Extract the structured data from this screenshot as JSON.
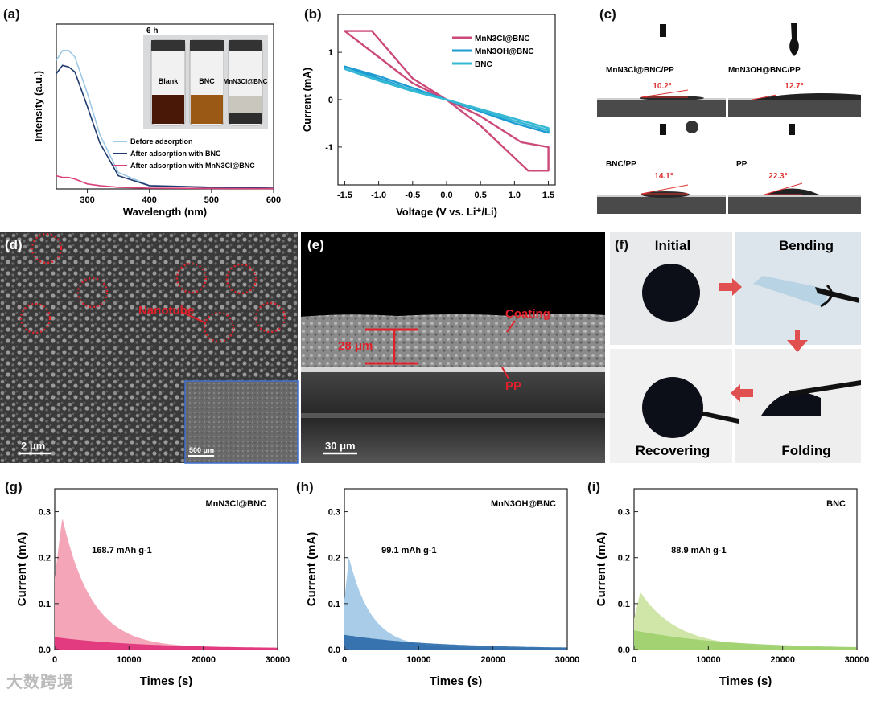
{
  "panels": {
    "a": {
      "label": "(a)",
      "xlabel": "Wavelength (nm)",
      "ylabel": "Intensity (a.u.)",
      "xticks": [
        "300",
        "400",
        "500",
        "600"
      ],
      "photo_label": "6 h",
      "vials": [
        "Blank",
        "BNC",
        "MnN3Cl@BNC"
      ],
      "legend": [
        "Before adsorption",
        "After adsorption with BNC",
        "After adsorption with MnN3Cl@BNC"
      ]
    },
    "b": {
      "label": "(b)",
      "xlabel": "Voltage (V vs. Li⁺/Li)",
      "ylabel": "Current (mA)",
      "xticks": [
        "-1.5",
        "-1.0",
        "-0.5",
        "0.0",
        "0.5",
        "1.0",
        "1.5"
      ],
      "yticks": [
        "1",
        "0",
        "-1"
      ],
      "legend": [
        "MnN3Cl@BNC",
        "MnN3OH@BNC",
        "BNC"
      ]
    },
    "c": {
      "label": "(c)",
      "items": [
        {
          "name": "MnN3Cl@BNC/PP",
          "angle": "10.2°"
        },
        {
          "name": "MnN3OH@BNC/PP",
          "angle": "12.7°"
        },
        {
          "name": "BNC/PP",
          "angle": "14.1°"
        },
        {
          "name": "PP",
          "angle": "22.3°"
        }
      ]
    },
    "d": {
      "label": "(d)",
      "annotation": "Nanotube",
      "scale": "2 μm",
      "inset_scale": "500 μm"
    },
    "e": {
      "label": "(e)",
      "thickness": "28 μm",
      "coating": "Coating",
      "pp": "PP",
      "scale": "30 μm"
    },
    "f": {
      "label": "(f)",
      "steps": [
        "Initial",
        "Bending",
        "Recovering",
        "Folding"
      ]
    },
    "g": {
      "label": "(g)",
      "sample": "MnN3Cl@BNC",
      "capacity": "168.7 mAh g-1"
    },
    "h": {
      "label": "(h)",
      "sample": "MnN3OH@BNC",
      "capacity": "99.1 mAh g-1"
    },
    "i": {
      "label": "(i)",
      "sample": "BNC",
      "capacity": "88.9 mAh g-1"
    }
  },
  "bottom_axes": {
    "xlabel": "Times (s)",
    "ylabel": "Current (mA)",
    "xticks": [
      "0",
      "10000",
      "20000",
      "30000"
    ],
    "yticks": [
      "0.0",
      "0.1",
      "0.2",
      "0.3"
    ]
  },
  "watermark": "大数跨境",
  "chart_data": [
    {
      "type": "line",
      "title": "(a)",
      "xlabel": "Wavelength (nm)",
      "ylabel": "Intensity (a.u.)",
      "xlim": [
        250,
        600
      ],
      "series": [
        {
          "name": "Before adsorption",
          "color": "#9ec9e6",
          "x": [
            250,
            260,
            270,
            280,
            300,
            320,
            350,
            400,
            500,
            600
          ],
          "y": [
            0.78,
            0.84,
            0.84,
            0.8,
            0.58,
            0.33,
            0.1,
            0.02,
            0.01,
            0.005
          ]
        },
        {
          "name": "After adsorption with BNC",
          "color": "#1f3b6e",
          "x": [
            250,
            260,
            270,
            280,
            300,
            320,
            350,
            400,
            500,
            600
          ],
          "y": [
            0.7,
            0.75,
            0.74,
            0.71,
            0.5,
            0.28,
            0.08,
            0.02,
            0.01,
            0.005
          ]
        },
        {
          "name": "After adsorption with MnN3Cl@BNC",
          "color": "#d9407a",
          "x": [
            250,
            260,
            270,
            280,
            300,
            320,
            350,
            400,
            500,
            600
          ],
          "y": [
            0.08,
            0.07,
            0.07,
            0.06,
            0.03,
            0.02,
            0.01,
            0.005,
            0.003,
            0.002
          ]
        }
      ]
    },
    {
      "type": "line",
      "title": "(b)",
      "xlabel": "Voltage (V vs. Li+/Li)",
      "ylabel": "Current (mA)",
      "xlim": [
        -1.6,
        1.6
      ],
      "ylim": [
        -1.8,
        1.8
      ],
      "series": [
        {
          "name": "MnN3Cl@BNC",
          "color": "#cc4a7a",
          "x": [
            -1.5,
            -1.1,
            -0.5,
            0,
            0.5,
            1.1,
            1.5,
            1.5,
            1.2,
            0.5,
            0,
            -0.5,
            -1.0,
            -1.5
          ],
          "y": [
            1.45,
            1.45,
            0.45,
            0,
            -0.35,
            -0.9,
            -1.0,
            -1.5,
            -1.5,
            -0.55,
            0,
            0.35,
            0.9,
            1.45
          ]
        },
        {
          "name": "MnN3OH@BNC",
          "color": "#1e9bd2",
          "x": [
            -1.5,
            -1.0,
            -0.5,
            0,
            0.5,
            1.0,
            1.5,
            1.5,
            1.0,
            0.5,
            0,
            -0.5,
            -1.0,
            -1.5
          ],
          "y": [
            0.7,
            0.5,
            0.25,
            0,
            -0.25,
            -0.45,
            -0.65,
            -0.7,
            -0.5,
            -0.25,
            0,
            0.2,
            0.45,
            0.7
          ]
        },
        {
          "name": "BNC",
          "color": "#35b8d4",
          "x": [
            -1.5,
            -1.0,
            -0.5,
            0,
            0.5,
            1.0,
            1.5,
            1.5,
            1.0,
            0.5,
            0,
            -0.5,
            -1.0,
            -1.5
          ],
          "y": [
            0.65,
            0.42,
            0.2,
            0,
            -0.2,
            -0.4,
            -0.6,
            -0.65,
            -0.45,
            -0.22,
            0,
            0.18,
            0.4,
            0.65
          ]
        }
      ]
    },
    {
      "type": "area",
      "title": "(g) MnN3Cl@BNC",
      "xlim": [
        0,
        30000
      ],
      "ylim": [
        0,
        0.35
      ],
      "peak_x": 1000,
      "peak_y": 0.285,
      "base_y": 0.025,
      "decay": 4000,
      "color": "#f4a6b8",
      "base_color": "#e0307a",
      "annotation": "168.7 mAh g-1"
    },
    {
      "type": "area",
      "title": "(h) MnN3OH@BNC",
      "xlim": [
        0,
        30000
      ],
      "ylim": [
        0,
        0.35
      ],
      "peak_x": 600,
      "peak_y": 0.198,
      "base_y": 0.03,
      "decay": 3000,
      "color": "#a9cde8",
      "base_color": "#2a6aa8",
      "annotation": "99.1 mAh g-1"
    },
    {
      "type": "area",
      "title": "(i) BNC",
      "xlim": [
        0,
        30000
      ],
      "ylim": [
        0,
        0.35
      ],
      "peak_x": 800,
      "peak_y": 0.122,
      "base_y": 0.04,
      "decay": 5000,
      "color": "#cfe6a8",
      "base_color": "#9ccf6c",
      "annotation": "88.9 mAh g-1"
    }
  ]
}
